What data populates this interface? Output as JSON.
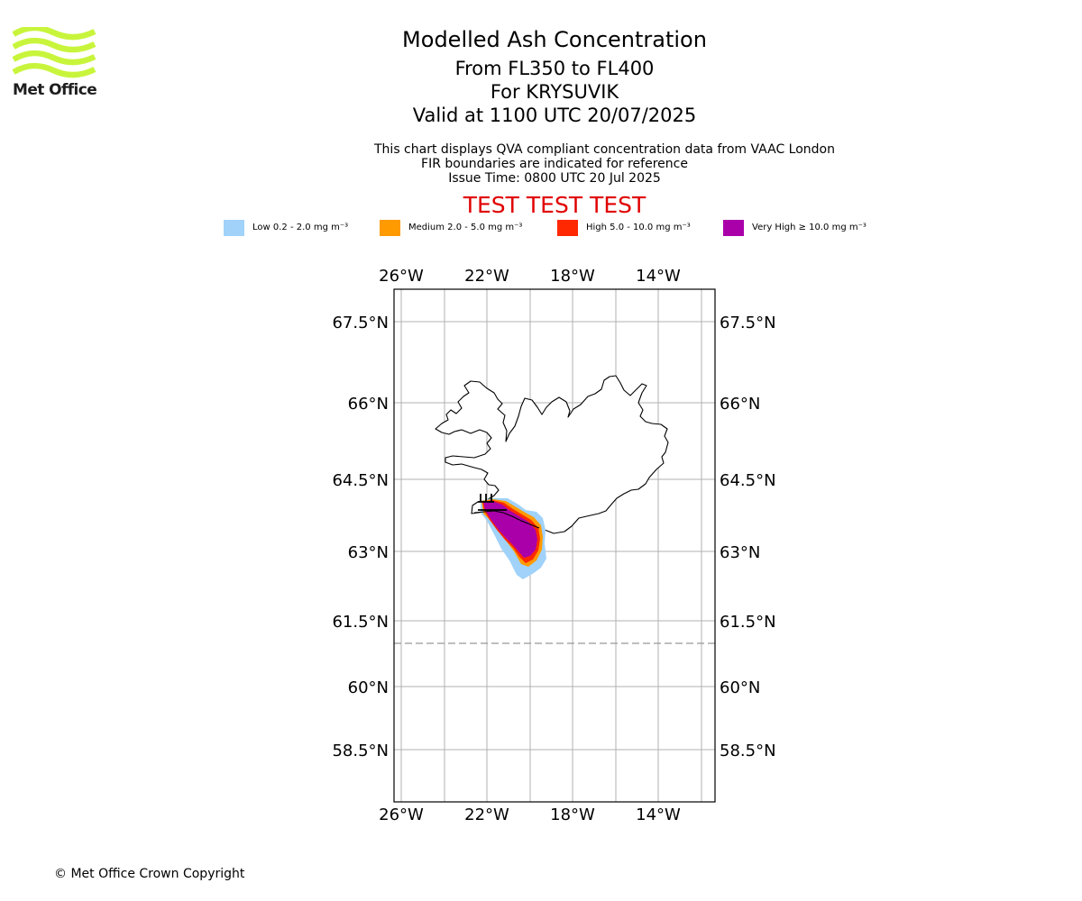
{
  "logo": {
    "text": "Met Office",
    "colors": {
      "waves": "#c8f53c",
      "text": "#1e1e1e"
    }
  },
  "header": {
    "title": "Modelled Ash Concentration",
    "levels": "From FL350 to FL400",
    "volcano": "For KRYSUVIK",
    "valid": "Valid at 1100 UTC 20/07/2025"
  },
  "subtitle": {
    "line1": "This chart displays QVA compliant concentration data from VAAC London",
    "line2": "FIR boundaries are indicated for reference",
    "line3": "Issue Time: 0800 UTC 20 Jul 2025"
  },
  "test_banner": {
    "text": "TEST TEST TEST",
    "color": "#e00000"
  },
  "legend": [
    {
      "label": "Low 0.2 - 2.0 mg m⁻³",
      "color": "#a0d2fa"
    },
    {
      "label": "Medium 2.0 - 5.0 mg m⁻³",
      "color": "#ff9a00"
    },
    {
      "label": "High 5.0 - 10.0 mg m⁻³",
      "color": "#ff2800"
    },
    {
      "label": "Very High ≥ 10.0 mg m⁻³",
      "color": "#aa00aa"
    }
  ],
  "map": {
    "lon_ticks": [
      "26°W",
      "22°W",
      "18°W",
      "14°W"
    ],
    "lat_ticks": [
      "67.5°N",
      "66°N",
      "64.5°N",
      "63°N",
      "61.5°N",
      "60°N",
      "58.5°N"
    ],
    "grid_color": "#b0b0b0",
    "fir_boundary_color": "#999999"
  },
  "footer": {
    "copyright": "© Met Office Crown Copyright"
  }
}
